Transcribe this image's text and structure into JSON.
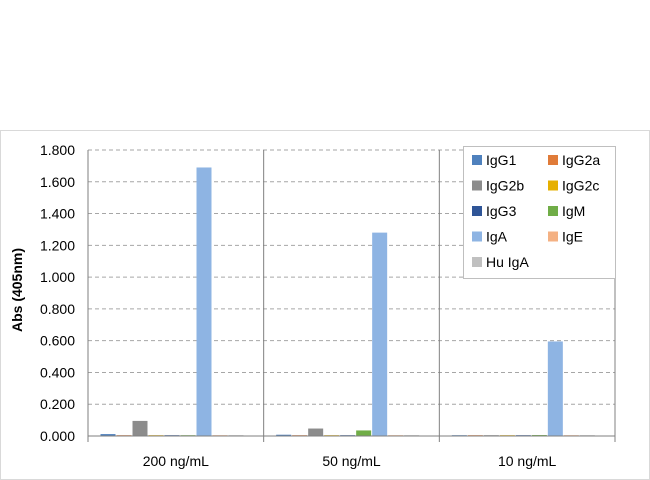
{
  "chart_data": {
    "type": "bar",
    "ylabel": "Abs (405nm)",
    "ylim": [
      0,
      1.8
    ],
    "yticks": [
      "0.000",
      "0.200",
      "0.400",
      "0.600",
      "0.800",
      "1.000",
      "1.200",
      "1.400",
      "1.600",
      "1.800"
    ],
    "categories": [
      "200 ng/mL",
      "50 ng/mL",
      "10 ng/mL"
    ],
    "grid": true,
    "legend_position": "top-right",
    "series": [
      {
        "name": "IgG1",
        "color": "#4f81bd",
        "values": [
          0.012,
          0.008,
          0.002
        ]
      },
      {
        "name": "IgG2a",
        "color": "#e07b39",
        "values": [
          0.002,
          0.002,
          0.001
        ]
      },
      {
        "name": "IgG2b",
        "color": "#8c8c8c",
        "values": [
          0.095,
          0.047,
          0.003
        ]
      },
      {
        "name": "IgG2c",
        "color": "#e6b000",
        "values": [
          0.002,
          0.002,
          0.001
        ]
      },
      {
        "name": "IgG3",
        "color": "#2f5597",
        "values": [
          0.002,
          0.002,
          0.001
        ]
      },
      {
        "name": "IgM",
        "color": "#70ad47",
        "values": [
          0.004,
          0.035,
          0.006
        ]
      },
      {
        "name": "IgA",
        "color": "#8eb4e3",
        "values": [
          1.69,
          1.28,
          0.595
        ]
      },
      {
        "name": "IgE",
        "color": "#f4b183",
        "values": [
          0.002,
          0.005,
          0.002
        ]
      },
      {
        "name": "Hu IgA",
        "color": "#c0c0c0",
        "values": [
          0.002,
          0.002,
          0.001
        ]
      }
    ]
  }
}
